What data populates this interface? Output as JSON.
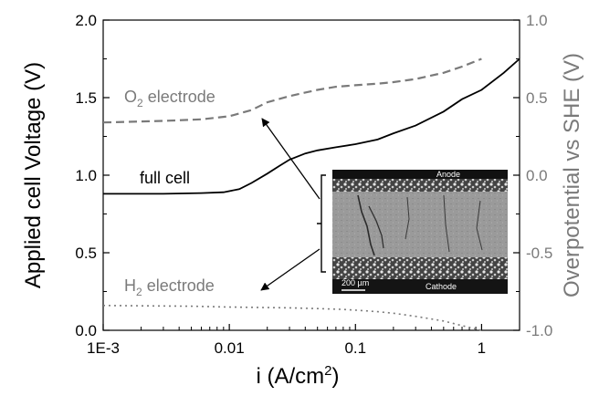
{
  "chart_data": {
    "type": "line",
    "title": "",
    "xlabel": "i (A/cm",
    "xlabel_sup": "2",
    "xlabel_end": ")",
    "ylabel_left": "Applied cell Voltage (V)",
    "ylabel_right": "Overpotential vs SHE (V)",
    "x_scale": "log",
    "xlim": [
      0.001,
      2
    ],
    "ylim_left": [
      0.0,
      2.0
    ],
    "ylim_right": [
      -1.0,
      1.0
    ],
    "x_ticks": [
      {
        "value": 0.001,
        "label": "1E-3"
      },
      {
        "value": 0.01,
        "label": "0.01"
      },
      {
        "value": 0.1,
        "label": "0.1"
      },
      {
        "value": 1,
        "label": "1"
      }
    ],
    "y_ticks_left": [
      "0.0",
      "0.5",
      "1.0",
      "1.5",
      "2.0"
    ],
    "y_ticks_right": [
      "-1.0",
      "-0.5",
      "0.0",
      "0.5",
      "1.0"
    ],
    "series": [
      {
        "name": "full cell",
        "axis": "left",
        "style": "solid",
        "color": "#000000",
        "x": [
          0.001,
          0.003,
          0.006,
          0.009,
          0.012,
          0.015,
          0.02,
          0.025,
          0.03,
          0.04,
          0.05,
          0.07,
          0.1,
          0.15,
          0.2,
          0.3,
          0.5,
          0.7,
          1.0,
          1.5,
          2.0
        ],
        "y": [
          0.88,
          0.88,
          0.885,
          0.89,
          0.91,
          0.95,
          1.01,
          1.06,
          1.1,
          1.14,
          1.16,
          1.18,
          1.2,
          1.23,
          1.27,
          1.32,
          1.41,
          1.49,
          1.55,
          1.66,
          1.75
        ]
      },
      {
        "name": "O2 electrode",
        "axis": "right",
        "style": "dashed",
        "color": "#7a7a7a",
        "x": [
          0.001,
          0.003,
          0.006,
          0.01,
          0.015,
          0.02,
          0.03,
          0.05,
          0.07,
          0.1,
          0.15,
          0.2,
          0.3,
          0.5,
          0.7,
          1.0
        ],
        "y": [
          0.34,
          0.35,
          0.36,
          0.38,
          0.42,
          0.47,
          0.51,
          0.55,
          0.57,
          0.58,
          0.59,
          0.6,
          0.62,
          0.66,
          0.7,
          0.75
        ]
      },
      {
        "name": "H2 electrode",
        "axis": "right",
        "style": "dotted",
        "color": "#7a7a7a",
        "x": [
          0.001,
          0.005,
          0.01,
          0.03,
          0.05,
          0.08,
          0.1,
          0.15,
          0.2,
          0.3,
          0.5,
          0.7,
          1.0
        ],
        "y": [
          -0.84,
          -0.845,
          -0.85,
          -0.855,
          -0.86,
          -0.865,
          -0.87,
          -0.88,
          -0.89,
          -0.91,
          -0.94,
          -0.97,
          -1.0
        ]
      }
    ],
    "annotations": [
      {
        "id": "o2",
        "text": "O",
        "sub": "2",
        "rest": " electrode",
        "color": "#7a7a7a"
      },
      {
        "id": "full",
        "text": "full cell",
        "color": "#000000"
      },
      {
        "id": "h2",
        "text": "H",
        "sub": "2",
        "rest": " electrode",
        "color": "#7a7a7a"
      }
    ],
    "inset": {
      "top_label": "Anode",
      "bottom_label": "Cathode",
      "scale_label": "200 µm"
    }
  }
}
